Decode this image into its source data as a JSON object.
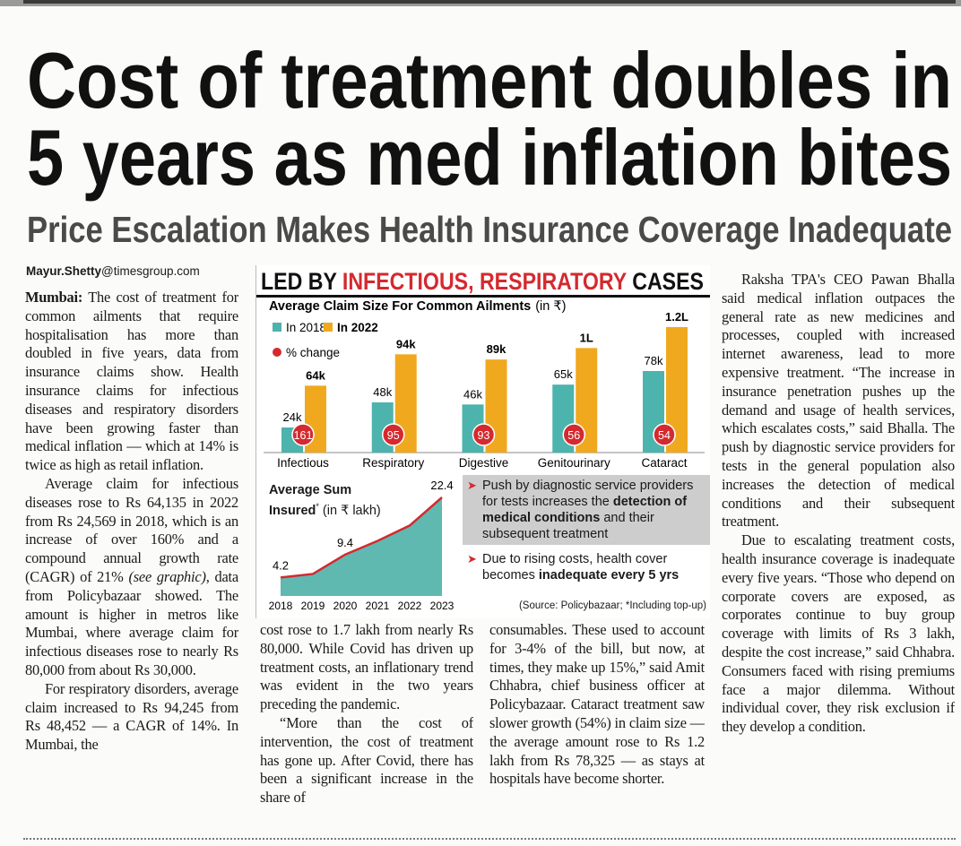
{
  "header": {
    "title_lines": [
      "Cost of treatment doubles in",
      "5 years as med inflation bites"
    ],
    "subtitle": "Price Escalation Makes Health Insurance Coverage Inadequate"
  },
  "byline": {
    "name": "Mayur.Shetty",
    "domain": "@timesgroup.com"
  },
  "graphic": {
    "heading": [
      {
        "text": "LED BY "
      },
      {
        "text": "INFECTIOUS, RESPIRATORY",
        "color": "#d42a2f"
      },
      {
        "text": " CASES"
      }
    ],
    "notes": [
      [
        {
          "text": "Push by diagnostic service providers for tests increases the "
        },
        {
          "text": "detection of medical conditions",
          "bold": true
        },
        {
          "text": " and their subsequent treatment"
        }
      ],
      [
        {
          "text": "Due to rising costs, health cover becomes "
        },
        {
          "text": "inadequate every 5 yrs",
          "bold": true
        }
      ]
    ],
    "source": "(Source: Policybazaar; *Including top-up)"
  },
  "chart_data": [
    {
      "type": "bar",
      "title": "Average Claim Size For Common Ailments",
      "unit": "(in ₹)",
      "categories": [
        "Infectious",
        "Respiratory",
        "Digestive",
        "Genitourinary",
        "Cataract"
      ],
      "series": [
        {
          "name": "In 2018",
          "color": "#4db3ad",
          "values": [
            24000,
            48000,
            46000,
            65000,
            78000
          ],
          "value_labels": [
            "24k",
            "48k",
            "46k",
            "65k",
            "78k"
          ]
        },
        {
          "name": "In 2022",
          "color": "#f0a91e",
          "values": [
            64000,
            94000,
            89000,
            100000,
            120000
          ],
          "value_labels": [
            "64k",
            "94k",
            "89k",
            "1L",
            "1.2L"
          ]
        },
        {
          "name": "% change",
          "color": "#d42a2f",
          "values": [
            161,
            95,
            93,
            56,
            54
          ]
        }
      ]
    },
    {
      "type": "area",
      "title": "Average Sum Insured",
      "title_mark": "*",
      "unit": "(in ₹ lakh)",
      "x": [
        2018,
        2019,
        2020,
        2021,
        2022,
        2023
      ],
      "values": [
        4.2,
        5.0,
        9.4,
        12.5,
        16.0,
        22.4
      ],
      "value_labels": [
        "4.2",
        null,
        "9.4",
        null,
        null,
        "22.4"
      ],
      "color": "#5fb9b1",
      "line_color": "#d42a2f"
    }
  ],
  "columns": [
    [
      [
        {
          "text": "Mumbai:",
          "bold": true
        },
        {
          "text": " The cost of treatment for common ailments that require hospitalisation has more than doubled in five years, data from insurance claims show. Health insurance claims for infectious diseases and respiratory disorders have been growing faster than medical inflation — which at 14% is twice as high as retail inflation."
        }
      ],
      [
        {
          "text": "Average claim for infectious diseases rose to Rs 64,135 in 2022 from Rs 24,569 in 2018, which is an increase of over 160% and a compound annual growth rate (CAGR) of 21% "
        },
        {
          "text": "(see graphic)",
          "italic": true
        },
        {
          "text": ", data from Policybazaar showed. The amount is higher in metros like Mumbai, where average claim for infectious diseases rose to nearly Rs 80,000 from about Rs 30,000."
        }
      ],
      [
        {
          "text": "For respiratory disorders, average claim increased to Rs 94,245 from Rs 48,452 — a CAGR of 14%. In Mumbai, the"
        }
      ]
    ],
    [
      [
        {
          "text": "cost rose to 1.7 lakh from nearly Rs 80,000. While Covid has driven up treatment costs, an inflationary trend was evident in the two years preceding the pandemic."
        }
      ],
      [
        {
          "text": "“More than the cost of intervention, the cost of treatment has gone up. After Covid, there has been a significant increase in the share of"
        }
      ]
    ],
    [
      [
        {
          "text": "consumables. These used to account for 3-4% of the bill, but now, at times, they make up 15%,” said Amit Chhabra, chief business officer at Policybazaar. Cataract treatment saw slower growth (54%) in claim size — the average amount rose to Rs 1.2 lakh from Rs 78,325 — as stays at hospitals have become shorter."
        }
      ]
    ],
    [
      [
        {
          "text": "Raksha TPA's CEO Pawan Bhalla said medical inflation outpaces the general rate as new medicines and processes, coupled with increased internet awareness, lead to more expensive treatment. “The increase in insurance penetration pushes up the demand and usage of health services, which escalates costs,” said Bhalla. The push by diagnostic service providers for tests in the general population also increases the detection of medical conditions and their subsequent treatment."
        }
      ],
      [
        {
          "text": "Due to escalating treatment costs, health insurance coverage is inadequate every five years. “Those who depend on corporate covers are exposed, as corporates continue to buy group coverage with limits of Rs 3 lakh, despite the cost increase,” said Chhabra. Consumers faced with rising premiums face a major dilemma. Without individual cover, they risk exclusion if they develop a condition."
        }
      ]
    ]
  ]
}
